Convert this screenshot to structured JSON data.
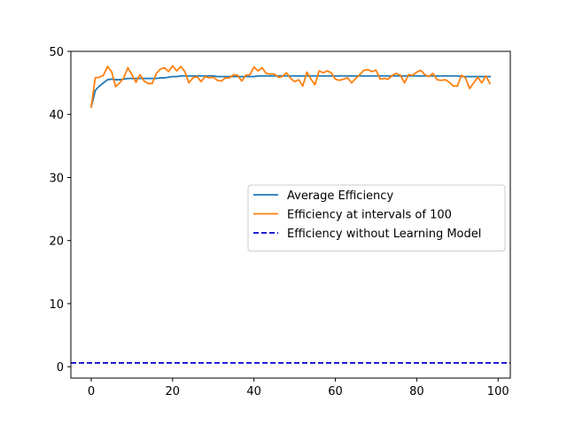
{
  "chart_data": {
    "type": "line",
    "title": "",
    "xlabel": "",
    "ylabel": "",
    "xlim": [
      -5,
      103
    ],
    "ylim": [
      -1.8,
      50
    ],
    "xticks": [
      0,
      20,
      40,
      60,
      80,
      100
    ],
    "yticks": [
      0,
      10,
      20,
      30,
      40,
      50
    ],
    "grid": false,
    "legend_position": "center-right",
    "series": [
      {
        "name": "Average Efficiency",
        "color": "#1f77b4",
        "style": "solid",
        "x": [
          0,
          1,
          2,
          3,
          4,
          5,
          6,
          7,
          8,
          9,
          10,
          11,
          12,
          13,
          14,
          15,
          16,
          17,
          18,
          19,
          20,
          21,
          22,
          23,
          24,
          25,
          26,
          27,
          28,
          29,
          30,
          31,
          32,
          33,
          34,
          35,
          36,
          37,
          38,
          39,
          40,
          41,
          42,
          43,
          44,
          45,
          46,
          47,
          48,
          49,
          50,
          51,
          52,
          53,
          54,
          55,
          56,
          57,
          58,
          59,
          60,
          61,
          62,
          63,
          64,
          65,
          66,
          67,
          68,
          69,
          70,
          71,
          72,
          73,
          74,
          75,
          76,
          77,
          78,
          79,
          80,
          81,
          82,
          83,
          84,
          85,
          86,
          87,
          88,
          89,
          90,
          91,
          92,
          93,
          94,
          95,
          96,
          97,
          98
        ],
        "y": [
          41.2,
          43.8,
          44.5,
          45.0,
          45.5,
          45.6,
          45.5,
          45.5,
          45.6,
          45.7,
          45.7,
          45.7,
          45.7,
          45.7,
          45.7,
          45.7,
          45.7,
          45.8,
          45.8,
          45.9,
          46.0,
          46.0,
          46.1,
          46.1,
          46.1,
          46.1,
          46.1,
          46.1,
          46.1,
          46.1,
          46.1,
          46.0,
          46.0,
          46.0,
          46.0,
          46.0,
          46.0,
          46.0,
          46.0,
          46.0,
          46.0,
          46.1,
          46.1,
          46.1,
          46.1,
          46.1,
          46.1,
          46.1,
          46.1,
          46.1,
          46.1,
          46.1,
          46.1,
          46.1,
          46.1,
          46.1,
          46.1,
          46.1,
          46.1,
          46.1,
          46.1,
          46.1,
          46.1,
          46.1,
          46.1,
          46.1,
          46.1,
          46.1,
          46.1,
          46.1,
          46.1,
          46.1,
          46.1,
          46.1,
          46.1,
          46.1,
          46.1,
          46.1,
          46.1,
          46.1,
          46.1,
          46.1,
          46.1,
          46.1,
          46.1,
          46.1,
          46.1,
          46.1,
          46.1,
          46.1,
          46.1,
          46.0,
          46.0,
          46.0,
          46.0,
          46.0,
          46.0,
          46.0,
          46.0
        ]
      },
      {
        "name": "Efficiency at intervals of 100",
        "color": "#ff7f0e",
        "style": "solid",
        "x": [
          0,
          1,
          2,
          3,
          4,
          5,
          6,
          7,
          8,
          9,
          10,
          11,
          12,
          13,
          14,
          15,
          16,
          17,
          18,
          19,
          20,
          21,
          22,
          23,
          24,
          25,
          26,
          27,
          28,
          29,
          30,
          31,
          32,
          33,
          34,
          35,
          36,
          37,
          38,
          39,
          40,
          41,
          42,
          43,
          44,
          45,
          46,
          47,
          48,
          49,
          50,
          51,
          52,
          53,
          54,
          55,
          56,
          57,
          58,
          59,
          60,
          61,
          62,
          63,
          64,
          65,
          66,
          67,
          68,
          69,
          70,
          71,
          72,
          73,
          74,
          75,
          76,
          77,
          78,
          79,
          80,
          81,
          82,
          83,
          84,
          85,
          86,
          87,
          88,
          89,
          90,
          91,
          92,
          93,
          94,
          95,
          96,
          97,
          98
        ],
        "y": [
          41.2,
          45.8,
          45.9,
          46.2,
          47.6,
          46.8,
          44.4,
          45.0,
          45.8,
          47.4,
          46.3,
          45.1,
          46.3,
          45.3,
          44.9,
          44.9,
          46.5,
          47.2,
          47.4,
          46.8,
          47.7,
          46.9,
          47.6,
          46.8,
          45.0,
          45.8,
          46.0,
          45.2,
          46.0,
          45.8,
          45.9,
          45.4,
          45.3,
          45.8,
          45.8,
          46.3,
          46.2,
          45.3,
          46.2,
          46.3,
          47.5,
          46.9,
          47.4,
          46.5,
          46.4,
          46.4,
          45.9,
          46.0,
          46.6,
          45.7,
          45.2,
          45.5,
          44.5,
          46.7,
          45.6,
          44.7,
          46.9,
          46.6,
          46.9,
          46.6,
          45.6,
          45.4,
          45.6,
          45.8,
          45.0,
          45.7,
          46.3,
          47.0,
          47.1,
          46.8,
          47.0,
          45.6,
          45.7,
          45.6,
          46.2,
          46.5,
          46.2,
          45.0,
          46.3,
          46.2,
          46.7,
          47.0,
          46.3,
          46.0,
          46.5,
          45.5,
          45.4,
          45.5,
          45.1,
          44.5,
          44.5,
          46.2,
          45.8,
          44.1,
          45.0,
          45.9,
          45.0,
          46.1,
          44.9
        ]
      },
      {
        "name": "Efficiency without Learning Model",
        "color": "#0000cc",
        "style": "dashed",
        "y_constant": 0.6
      }
    ]
  }
}
